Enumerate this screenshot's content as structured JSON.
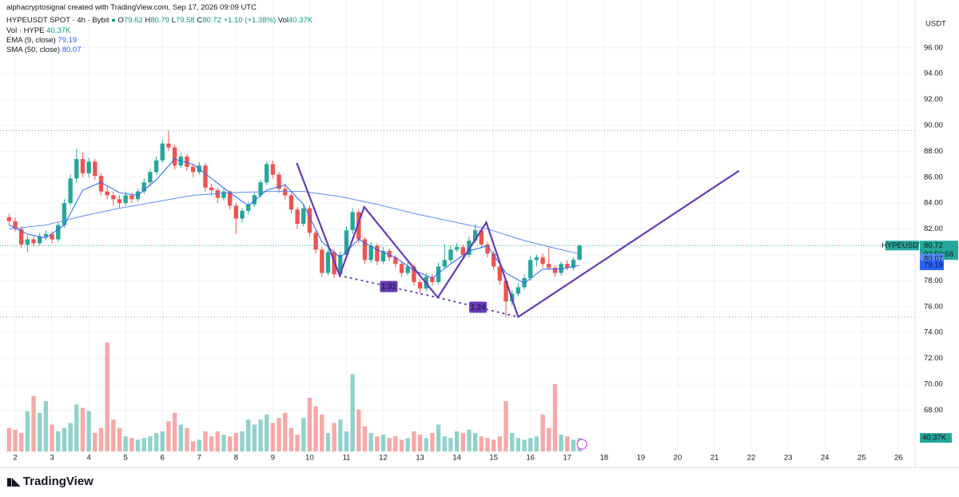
{
  "header": {
    "credit": "alphacryptosignal created with TradingView.com, Sep 17, 2026 09:09 UTC",
    "symbol": "HYPEUSDT SPOT · 4h · Bybit",
    "ohlc": [
      {
        "label": "O",
        "value": "79.62"
      },
      {
        "label": "H",
        "value": "80.79"
      },
      {
        "label": "L",
        "value": "79.58"
      },
      {
        "label": "C",
        "value": "80.72"
      }
    ],
    "change": "+1.10 (+1.38%)",
    "vol": {
      "label": "Vol",
      "value": "40.37K"
    }
  },
  "indicators": [
    {
      "label": "Vol · HYPE",
      "value": "40.37K"
    },
    {
      "label": "EMA (9, close)",
      "value": "79.19"
    },
    {
      "label": "SMA (50, close)",
      "value": "80.07"
    }
  ],
  "chart_data": {
    "type": "candlestick",
    "currency": "USDT",
    "symbol_tag": "HYPEUSDT",
    "last_label": "80.72",
    "countdown": "02:50:58",
    "sma_label": "80.07",
    "ema_label": "79.19",
    "volume_label": "40.37K",
    "up_color": "#26a69a",
    "down_color": "#ef5350",
    "xlim": [
      -2.48,
      146.7
    ],
    "ylim": [
      64.81,
      99.69
    ],
    "volume_ylim": [
      0,
      1345
    ],
    "xticks": [
      {
        "value": 0,
        "label": "2"
      },
      {
        "value": 6,
        "label": "3"
      },
      {
        "value": 12,
        "label": "4"
      },
      {
        "value": 18,
        "label": "5"
      },
      {
        "value": 24,
        "label": "6"
      },
      {
        "value": 30,
        "label": "7"
      },
      {
        "value": 36,
        "label": "8"
      },
      {
        "value": 42,
        "label": "9"
      },
      {
        "value": 48,
        "label": "10"
      },
      {
        "value": 54,
        "label": "11"
      },
      {
        "value": 60,
        "label": "12"
      },
      {
        "value": 66,
        "label": "13"
      },
      {
        "value": 72,
        "label": "14"
      },
      {
        "value": 78,
        "label": "15"
      },
      {
        "value": 84,
        "label": "16"
      },
      {
        "value": 90,
        "label": "17"
      },
      {
        "value": 96,
        "label": "18"
      },
      {
        "value": 102,
        "label": "19"
      },
      {
        "value": 108,
        "label": "20"
      },
      {
        "value": 114,
        "label": "21"
      },
      {
        "value": 120,
        "label": "22"
      },
      {
        "value": 126,
        "label": "23"
      },
      {
        "value": 132,
        "label": "24"
      },
      {
        "value": 138,
        "label": "25"
      },
      {
        "value": 144,
        "label": "26"
      }
    ],
    "yticks": [
      {
        "value": 68,
        "label": "68.00"
      },
      {
        "value": 70,
        "label": "70.00"
      },
      {
        "value": 72,
        "label": "72.00"
      },
      {
        "value": 74,
        "label": "74.00"
      },
      {
        "value": 76,
        "label": "76.00"
      },
      {
        "value": 78,
        "label": "78.00"
      },
      {
        "value": 80,
        "label": "80.00"
      },
      {
        "value": 82,
        "label": "82.00"
      },
      {
        "value": 84,
        "label": "84.00"
      },
      {
        "value": 86,
        "label": "86.00"
      },
      {
        "value": 88,
        "label": "88.00"
      },
      {
        "value": 90,
        "label": "90.00"
      },
      {
        "value": 92,
        "label": "92.00"
      },
      {
        "value": 94,
        "label": "94.00"
      },
      {
        "value": 96,
        "label": "96.00"
      }
    ],
    "x": [
      -1,
      0,
      1,
      2,
      3,
      4,
      5,
      6,
      7,
      8,
      9,
      10,
      11,
      12,
      13,
      14,
      15,
      16,
      17,
      18,
      19,
      20,
      21,
      22,
      23,
      24,
      25,
      26,
      27,
      28,
      29,
      30,
      31,
      32,
      33,
      34,
      35,
      36,
      37,
      38,
      39,
      40,
      41,
      42,
      43,
      44,
      45,
      46,
      47,
      48,
      49,
      50,
      51,
      52,
      53,
      54,
      55,
      56,
      57,
      58,
      59,
      60,
      61,
      62,
      63,
      64,
      65,
      66,
      67,
      68,
      69,
      70,
      71,
      72,
      73,
      74,
      75,
      76,
      77,
      78,
      79,
      80,
      81,
      82,
      83,
      84,
      85,
      86,
      87,
      88,
      89,
      90,
      91,
      92
    ],
    "ohlc": [
      [
        82.9,
        83.2,
        82.3,
        82.6
      ],
      [
        82.6,
        82.9,
        81.8,
        82.0
      ],
      [
        82.0,
        82.2,
        80.5,
        80.8
      ],
      [
        80.8,
        81.5,
        80.2,
        81.2
      ],
      [
        81.2,
        81.4,
        80.6,
        80.9
      ],
      [
        80.9,
        81.7,
        80.7,
        81.4
      ],
      [
        81.4,
        81.9,
        81.1,
        81.6
      ],
      [
        81.6,
        81.8,
        80.9,
        81.2
      ],
      [
        81.2,
        82.5,
        81.0,
        82.3
      ],
      [
        82.3,
        84.3,
        82.1,
        84.0
      ],
      [
        84.0,
        86.2,
        83.8,
        85.9
      ],
      [
        85.9,
        88.2,
        85.6,
        87.4
      ],
      [
        87.4,
        87.9,
        86.0,
        86.3
      ],
      [
        86.3,
        87.5,
        86.0,
        87.2
      ],
      [
        87.2,
        87.4,
        85.8,
        86.1
      ],
      [
        86.1,
        86.3,
        84.6,
        84.9
      ],
      [
        84.9,
        85.3,
        84.3,
        84.6
      ],
      [
        84.6,
        84.9,
        83.8,
        84.3
      ],
      [
        84.3,
        84.6,
        83.6,
        84.0
      ],
      [
        84.0,
        84.9,
        83.8,
        84.6
      ],
      [
        84.6,
        84.8,
        84.0,
        84.3
      ],
      [
        84.3,
        85.1,
        84.1,
        84.9
      ],
      [
        84.9,
        85.9,
        84.7,
        85.6
      ],
      [
        85.6,
        86.6,
        85.3,
        86.4
      ],
      [
        86.4,
        87.6,
        86.2,
        87.3
      ],
      [
        87.3,
        88.9,
        87.1,
        88.6
      ],
      [
        88.6,
        89.6,
        88.0,
        88.3
      ],
      [
        88.3,
        88.5,
        86.6,
        86.9
      ],
      [
        86.9,
        87.9,
        86.7,
        87.6
      ],
      [
        87.6,
        87.8,
        86.5,
        86.8
      ],
      [
        86.8,
        87.0,
        86.0,
        86.4
      ],
      [
        86.4,
        87.2,
        86.2,
        86.9
      ],
      [
        86.9,
        87.1,
        84.9,
        85.2
      ],
      [
        85.2,
        85.5,
        84.6,
        85.0
      ],
      [
        85.0,
        85.2,
        84.0,
        84.4
      ],
      [
        84.4,
        85.1,
        84.2,
        84.9
      ],
      [
        84.9,
        85.0,
        83.5,
        83.8
      ],
      [
        83.8,
        84.0,
        81.6,
        82.8
      ],
      [
        82.8,
        83.6,
        82.5,
        83.4
      ],
      [
        83.4,
        84.1,
        83.1,
        83.9
      ],
      [
        83.9,
        84.8,
        83.7,
        84.6
      ],
      [
        84.6,
        85.8,
        84.4,
        85.6
      ],
      [
        85.6,
        87.2,
        85.4,
        87.0
      ],
      [
        87.0,
        87.3,
        85.9,
        86.2
      ],
      [
        86.2,
        86.4,
        84.8,
        85.1
      ],
      [
        85.1,
        85.5,
        84.3,
        84.6
      ],
      [
        84.6,
        84.8,
        83.2,
        83.5
      ],
      [
        83.5,
        83.7,
        82.0,
        82.4
      ],
      [
        82.4,
        83.9,
        82.2,
        83.6
      ],
      [
        83.6,
        83.8,
        81.4,
        81.7
      ],
      [
        81.7,
        81.9,
        80.1,
        80.4
      ],
      [
        80.4,
        80.6,
        78.3,
        78.6
      ],
      [
        78.6,
        80.5,
        78.4,
        80.2
      ],
      [
        80.2,
        80.4,
        78.2,
        78.5
      ],
      [
        78.5,
        80.3,
        78.3,
        80.0
      ],
      [
        80.0,
        82.2,
        79.8,
        81.9
      ],
      [
        81.9,
        83.6,
        81.6,
        83.3
      ],
      [
        83.3,
        83.5,
        80.9,
        81.2
      ],
      [
        81.2,
        81.4,
        79.3,
        79.6
      ],
      [
        79.6,
        81.0,
        79.4,
        80.7
      ],
      [
        80.7,
        80.9,
        79.2,
        79.5
      ],
      [
        79.5,
        80.6,
        79.3,
        80.3
      ],
      [
        80.3,
        80.5,
        79.5,
        79.8
      ],
      [
        79.8,
        80.0,
        79.0,
        79.3
      ],
      [
        79.3,
        79.5,
        78.3,
        78.6
      ],
      [
        78.6,
        79.4,
        78.4,
        79.1
      ],
      [
        79.1,
        79.3,
        77.6,
        77.9
      ],
      [
        77.9,
        78.1,
        77.0,
        77.4
      ],
      [
        77.4,
        78.6,
        77.2,
        78.3
      ],
      [
        78.3,
        78.5,
        77.6,
        77.9
      ],
      [
        77.9,
        79.4,
        77.7,
        79.1
      ],
      [
        79.1,
        80.8,
        78.9,
        79.6
      ],
      [
        79.6,
        80.7,
        79.4,
        80.4
      ],
      [
        80.4,
        80.9,
        80.2,
        80.6
      ],
      [
        80.6,
        80.8,
        79.7,
        80.0
      ],
      [
        80.0,
        81.4,
        79.8,
        81.1
      ],
      [
        81.1,
        82.4,
        80.9,
        81.9
      ],
      [
        81.9,
        82.0,
        80.5,
        80.8
      ],
      [
        80.8,
        81.0,
        79.8,
        80.1
      ],
      [
        80.1,
        80.3,
        78.8,
        79.1
      ],
      [
        79.1,
        79.3,
        77.7,
        78.0
      ],
      [
        78.0,
        78.2,
        75.2,
        76.4
      ],
      [
        76.4,
        77.3,
        76.1,
        77.0
      ],
      [
        77.0,
        77.8,
        76.8,
        77.5
      ],
      [
        77.5,
        78.5,
        77.3,
        78.2
      ],
      [
        78.2,
        79.9,
        78.0,
        79.6
      ],
      [
        79.6,
        80.0,
        79.1,
        79.8
      ],
      [
        79.8,
        80.1,
        79.0,
        79.3
      ],
      [
        79.3,
        80.6,
        78.8,
        79.0
      ],
      [
        79.0,
        79.2,
        78.3,
        78.6
      ],
      [
        78.6,
        79.5,
        78.4,
        79.3
      ],
      [
        79.3,
        79.6,
        78.8,
        79.0
      ],
      [
        79.0,
        79.8,
        78.8,
        79.62
      ],
      [
        79.62,
        80.79,
        79.58,
        80.72
      ]
    ],
    "volume": [
      70,
      65,
      55,
      120,
      165,
      115,
      150,
      80,
      60,
      70,
      85,
      140,
      130,
      120,
      55,
      70,
      325,
      95,
      70,
      45,
      40,
      35,
      40,
      45,
      55,
      60,
      90,
      115,
      80,
      70,
      30,
      35,
      60,
      45,
      60,
      50,
      45,
      55,
      60,
      95,
      80,
      95,
      110,
      85,
      100,
      115,
      70,
      50,
      100,
      160,
      135,
      110,
      55,
      85,
      95,
      60,
      230,
      125,
      75,
      55,
      45,
      50,
      40,
      45,
      35,
      40,
      60,
      50,
      40,
      55,
      80,
      45,
      40,
      60,
      55,
      65,
      55,
      45,
      40,
      35,
      45,
      150,
      55,
      40,
      35,
      40,
      45,
      110,
      70,
      200,
      50,
      45,
      35,
      40.37
    ],
    "lines": [
      {
        "name": "SMA (50, close)",
        "color": "#5b8def",
        "x": [
          -1,
          5,
          11,
          17,
          23,
          29,
          35,
          41,
          47,
          53,
          59,
          65,
          71,
          77,
          83,
          89,
          92
        ],
        "values": [
          82.0,
          82.3,
          83.0,
          83.6,
          84.1,
          84.6,
          84.8,
          84.9,
          84.9,
          84.5,
          83.9,
          83.2,
          82.6,
          82.0,
          81.1,
          80.4,
          80.07
        ]
      },
      {
        "name": "EMA (9, close)",
        "color": "#2962ff",
        "x": [
          -1,
          2,
          5,
          8,
          11,
          14,
          17,
          20,
          23,
          26,
          29,
          32,
          35,
          38,
          41,
          44,
          47,
          50,
          53,
          56,
          59,
          62,
          65,
          68,
          71,
          74,
          77,
          80,
          83,
          86,
          89,
          92
        ],
        "values": [
          82.3,
          81.6,
          81.3,
          82.3,
          85.0,
          85.6,
          84.8,
          84.6,
          85.8,
          87.4,
          87.0,
          85.9,
          84.8,
          83.8,
          85.0,
          85.4,
          83.9,
          81.0,
          79.8,
          81.2,
          80.4,
          79.8,
          78.8,
          78.2,
          79.3,
          80.3,
          80.7,
          78.6,
          77.8,
          78.9,
          78.9,
          79.19
        ]
      }
    ],
    "hlines": [
      89.6,
      75.2
    ],
    "drawing": {
      "color": "#673ab7",
      "path": [
        [
          45.9,
          87.1
        ],
        [
          52.9,
          78.4
        ],
        [
          56.9,
          83.7
        ],
        [
          68.9,
          76.7
        ],
        [
          76.8,
          82.5
        ],
        [
          82.0,
          75.2
        ],
        [
          118.0,
          86.5
        ]
      ],
      "dotted": [
        {
          "from": [
            52.9,
            78.4
          ],
          "to": [
            68.9,
            76.7
          ],
          "label": "1.31"
        },
        {
          "from": [
            68.9,
            76.7
          ],
          "to": [
            82.0,
            75.2
          ],
          "label": "1.24"
        }
      ]
    }
  },
  "footer": {
    "brand": "TradingView"
  }
}
